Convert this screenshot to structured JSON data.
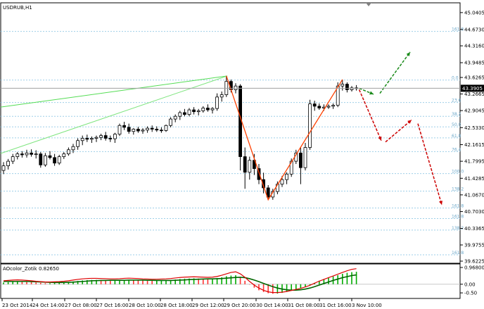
{
  "symbol_title": "USDRUB,H1",
  "indicator_title": "AOcolor_Zotik 0.82650",
  "price_badge": "43.3905",
  "colors": {
    "bull_candle": "#ffffff",
    "bear_candle": "#000000",
    "zigzag": "#ff4000",
    "green_line": "#00cc00",
    "forecast_up": "#1a8a1a",
    "forecast_down": "#cc0000",
    "ao_up": "#00aa00",
    "ao_down": "#ff3333",
    "fib": "#9ecfe8"
  },
  "chart_data": [
    {
      "type": "candlestick",
      "title": "USDRUB,H1",
      "ylim": [
        39.6225,
        45.1
      ],
      "ytick_labels": [
        "45.0405",
        "44.6730",
        "44.3160",
        "43.9485",
        "43.6265",
        "43.2665",
        "42.9045",
        "42.5330",
        "42.1615",
        "41.7995",
        "41.4285",
        "41.0670",
        "40.7030",
        "40.3365",
        "39.9755",
        "39.6225"
      ],
      "ytick_values": [
        45.0405,
        44.673,
        44.316,
        43.9485,
        43.6265,
        43.2665,
        42.9045,
        42.533,
        42.1615,
        41.7995,
        41.4285,
        41.067,
        40.703,
        40.3365,
        39.9755,
        39.6225
      ],
      "xtick_labels": [
        "23 Oct 2014",
        "24 Oct 14:00",
        "27 Oct 08:00",
        "27 Oct 16:00",
        "28 Oct 10:00",
        "28 Oct 18:00",
        "29 Oct 12:00",
        "29 Oct 20:00",
        "30 Oct 14:00",
        "31 Oct 08:00",
        "31 Oct 16:00",
        "3 Nov 10:00"
      ],
      "current_price": 43.3905,
      "fib_levels": [
        {
          "label": "161.8",
          "value": 44.63
        },
        {
          "label": "0.0",
          "value": 43.57
        },
        {
          "label": "23.6",
          "value": 43.08
        },
        {
          "label": "38.2",
          "value": 42.78
        },
        {
          "label": "50.0",
          "value": 42.55
        },
        {
          "label": "61.8",
          "value": 42.31
        },
        {
          "label": "76.4",
          "value": 42.01
        },
        {
          "label": "100.0",
          "value": 41.53
        },
        {
          "label": "138.2",
          "value": 41.15
        },
        {
          "label": "161.8",
          "value": 40.78
        },
        {
          "label": "161.8",
          "value": 40.55
        },
        {
          "label": "138.2",
          "value": 40.3
        },
        {
          "label": "161.8",
          "value": 39.76
        }
      ],
      "candles": [
        {
          "o": 41.6,
          "h": 41.78,
          "l": 41.52,
          "c": 41.7
        },
        {
          "o": 41.7,
          "h": 41.85,
          "l": 41.62,
          "c": 41.8
        },
        {
          "o": 41.8,
          "h": 41.96,
          "l": 41.74,
          "c": 41.9
        },
        {
          "o": 41.9,
          "h": 42.0,
          "l": 41.84,
          "c": 41.96
        },
        {
          "o": 41.96,
          "h": 42.02,
          "l": 41.88,
          "c": 41.94
        },
        {
          "o": 41.94,
          "h": 42.05,
          "l": 41.88,
          "c": 41.98
        },
        {
          "o": 41.98,
          "h": 42.06,
          "l": 41.9,
          "c": 41.95
        },
        {
          "o": 41.95,
          "h": 42.04,
          "l": 41.86,
          "c": 41.96
        },
        {
          "o": 41.96,
          "h": 42.0,
          "l": 41.66,
          "c": 41.72
        },
        {
          "o": 41.72,
          "h": 41.98,
          "l": 41.68,
          "c": 41.92
        },
        {
          "o": 41.92,
          "h": 42.02,
          "l": 41.84,
          "c": 41.88
        },
        {
          "o": 41.88,
          "h": 41.96,
          "l": 41.7,
          "c": 41.76
        },
        {
          "o": 41.76,
          "h": 41.94,
          "l": 41.72,
          "c": 41.9
        },
        {
          "o": 41.9,
          "h": 42.0,
          "l": 41.85,
          "c": 41.96
        },
        {
          "o": 41.96,
          "h": 42.1,
          "l": 41.92,
          "c": 42.05
        },
        {
          "o": 42.05,
          "h": 42.18,
          "l": 41.98,
          "c": 42.12
        },
        {
          "o": 42.12,
          "h": 42.3,
          "l": 42.05,
          "c": 42.25
        },
        {
          "o": 42.25,
          "h": 42.36,
          "l": 42.15,
          "c": 42.3
        },
        {
          "o": 42.3,
          "h": 42.38,
          "l": 42.22,
          "c": 42.28
        },
        {
          "o": 42.28,
          "h": 42.34,
          "l": 42.2,
          "c": 42.3
        },
        {
          "o": 42.3,
          "h": 42.36,
          "l": 42.22,
          "c": 42.32
        },
        {
          "o": 42.32,
          "h": 42.4,
          "l": 42.26,
          "c": 42.36
        },
        {
          "o": 42.36,
          "h": 42.44,
          "l": 42.25,
          "c": 42.3
        },
        {
          "o": 42.3,
          "h": 42.36,
          "l": 42.22,
          "c": 42.29
        },
        {
          "o": 42.29,
          "h": 42.42,
          "l": 42.2,
          "c": 42.39
        },
        {
          "o": 42.39,
          "h": 42.62,
          "l": 42.35,
          "c": 42.58
        },
        {
          "o": 42.58,
          "h": 42.66,
          "l": 42.48,
          "c": 42.54
        },
        {
          "o": 42.54,
          "h": 42.62,
          "l": 42.4,
          "c": 42.45
        },
        {
          "o": 42.45,
          "h": 42.52,
          "l": 42.38,
          "c": 42.5
        },
        {
          "o": 42.5,
          "h": 42.55,
          "l": 42.42,
          "c": 42.46
        },
        {
          "o": 42.46,
          "h": 42.52,
          "l": 42.4,
          "c": 42.48
        },
        {
          "o": 42.48,
          "h": 42.56,
          "l": 42.42,
          "c": 42.52
        },
        {
          "o": 42.52,
          "h": 42.58,
          "l": 42.44,
          "c": 42.5
        },
        {
          "o": 42.5,
          "h": 42.56,
          "l": 42.44,
          "c": 42.48
        },
        {
          "o": 42.48,
          "h": 42.54,
          "l": 42.42,
          "c": 42.47
        },
        {
          "o": 42.47,
          "h": 42.6,
          "l": 42.44,
          "c": 42.58
        },
        {
          "o": 42.58,
          "h": 42.76,
          "l": 42.54,
          "c": 42.72
        },
        {
          "o": 42.72,
          "h": 42.82,
          "l": 42.65,
          "c": 42.78
        },
        {
          "o": 42.78,
          "h": 42.9,
          "l": 42.7,
          "c": 42.86
        },
        {
          "o": 42.86,
          "h": 42.94,
          "l": 42.78,
          "c": 42.82
        },
        {
          "o": 42.82,
          "h": 42.96,
          "l": 42.78,
          "c": 42.92
        },
        {
          "o": 42.92,
          "h": 42.98,
          "l": 42.82,
          "c": 42.88
        },
        {
          "o": 42.88,
          "h": 42.94,
          "l": 42.8,
          "c": 42.9
        },
        {
          "o": 42.9,
          "h": 43.0,
          "l": 42.86,
          "c": 42.96
        },
        {
          "o": 42.96,
          "h": 43.04,
          "l": 42.88,
          "c": 42.92
        },
        {
          "o": 42.92,
          "h": 42.98,
          "l": 42.84,
          "c": 42.95
        },
        {
          "o": 42.95,
          "h": 43.28,
          "l": 42.9,
          "c": 43.2
        },
        {
          "o": 43.2,
          "h": 43.32,
          "l": 43.1,
          "c": 43.25
        },
        {
          "o": 43.25,
          "h": 43.66,
          "l": 43.2,
          "c": 43.54
        },
        {
          "o": 43.54,
          "h": 43.58,
          "l": 43.3,
          "c": 43.36
        },
        {
          "o": 43.36,
          "h": 43.5,
          "l": 43.28,
          "c": 43.44
        },
        {
          "o": 43.44,
          "h": 43.48,
          "l": 41.6,
          "c": 41.9
        },
        {
          "o": 41.9,
          "h": 42.1,
          "l": 41.2,
          "c": 41.56
        },
        {
          "o": 41.56,
          "h": 41.9,
          "l": 41.4,
          "c": 41.82
        },
        {
          "o": 41.82,
          "h": 41.96,
          "l": 41.5,
          "c": 41.64
        },
        {
          "o": 41.64,
          "h": 41.74,
          "l": 41.3,
          "c": 41.4
        },
        {
          "o": 41.4,
          "h": 41.55,
          "l": 41.1,
          "c": 41.22
        },
        {
          "o": 41.22,
          "h": 41.28,
          "l": 40.98,
          "c": 41.02
        },
        {
          "o": 41.02,
          "h": 41.2,
          "l": 40.96,
          "c": 41.14
        },
        {
          "o": 41.14,
          "h": 41.36,
          "l": 41.08,
          "c": 41.3
        },
        {
          "o": 41.3,
          "h": 41.48,
          "l": 41.24,
          "c": 41.4
        },
        {
          "o": 41.4,
          "h": 41.56,
          "l": 41.3,
          "c": 41.52
        },
        {
          "o": 41.52,
          "h": 41.86,
          "l": 41.46,
          "c": 41.8
        },
        {
          "o": 41.8,
          "h": 42.05,
          "l": 41.74,
          "c": 41.98
        },
        {
          "o": 41.98,
          "h": 42.1,
          "l": 41.3,
          "c": 41.66
        },
        {
          "o": 41.66,
          "h": 42.2,
          "l": 41.6,
          "c": 42.1
        },
        {
          "o": 42.1,
          "h": 43.14,
          "l": 42.05,
          "c": 43.05
        },
        {
          "o": 43.05,
          "h": 43.12,
          "l": 42.9,
          "c": 43.0
        },
        {
          "o": 43.0,
          "h": 43.06,
          "l": 42.92,
          "c": 42.96
        },
        {
          "o": 42.96,
          "h": 43.04,
          "l": 42.9,
          "c": 42.98
        },
        {
          "o": 42.98,
          "h": 43.04,
          "l": 42.94,
          "c": 43.0
        },
        {
          "o": 43.0,
          "h": 43.06,
          "l": 42.94,
          "c": 43.02
        },
        {
          "o": 43.02,
          "h": 43.52,
          "l": 42.98,
          "c": 43.44
        },
        {
          "o": 43.44,
          "h": 43.58,
          "l": 43.34,
          "c": 43.48
        },
        {
          "o": 43.48,
          "h": 43.52,
          "l": 43.3,
          "c": 43.36
        },
        {
          "o": 43.36,
          "h": 43.44,
          "l": 43.32,
          "c": 43.4
        },
        {
          "o": 43.4,
          "h": 43.46,
          "l": 43.34,
          "c": 43.39
        }
      ]
    },
    {
      "type": "bar",
      "title": "AOcolor_Zotik 0.82650",
      "ylim": [
        -0.7,
        1.05
      ],
      "ytick_labels": [
        "0.968004",
        "0.00",
        "-0.50"
      ],
      "ytick_values": [
        0.968004,
        0.0,
        -0.5
      ],
      "values": [
        0.1,
        0.12,
        0.14,
        0.15,
        0.14,
        0.13,
        0.12,
        0.1,
        0.08,
        0.06,
        0.06,
        0.07,
        0.08,
        0.1,
        0.13,
        0.16,
        0.19,
        0.22,
        0.24,
        0.25,
        0.25,
        0.24,
        0.23,
        0.22,
        0.22,
        0.23,
        0.25,
        0.26,
        0.25,
        0.24,
        0.22,
        0.21,
        0.2,
        0.2,
        0.21,
        0.22,
        0.24,
        0.27,
        0.3,
        0.32,
        0.33,
        0.34,
        0.33,
        0.32,
        0.31,
        0.32,
        0.36,
        0.4,
        0.46,
        0.5,
        0.52,
        0.4,
        0.2,
        -0.02,
        -0.2,
        -0.35,
        -0.45,
        -0.52,
        -0.55,
        -0.54,
        -0.5,
        -0.44,
        -0.38,
        -0.3,
        -0.24,
        -0.16,
        -0.06,
        0.08,
        0.2,
        0.3,
        0.38,
        0.45,
        0.52,
        0.6,
        0.66,
        0.7,
        0.72
      ],
      "signal": [
        0.16,
        0.16,
        0.16,
        0.16,
        0.16,
        0.16,
        0.15,
        0.14,
        0.13,
        0.12,
        0.11,
        0.1,
        0.1,
        0.1,
        0.11,
        0.12,
        0.14,
        0.16,
        0.18,
        0.2,
        0.21,
        0.22,
        0.22,
        0.23,
        0.23,
        0.23,
        0.23,
        0.24,
        0.24,
        0.24,
        0.24,
        0.23,
        0.23,
        0.22,
        0.22,
        0.22,
        0.22,
        0.23,
        0.24,
        0.25,
        0.27,
        0.28,
        0.29,
        0.3,
        0.31,
        0.31,
        0.32,
        0.33,
        0.35,
        0.37,
        0.39,
        0.4,
        0.38,
        0.32,
        0.24,
        0.15,
        0.05,
        -0.05,
        -0.14,
        -0.22,
        -0.28,
        -0.32,
        -0.34,
        -0.34,
        -0.32,
        -0.28,
        -0.22,
        -0.14,
        -0.05,
        0.04,
        0.13,
        0.22,
        0.3,
        0.38,
        0.44,
        0.5,
        0.54
      ],
      "line": [
        0.2,
        0.22,
        0.24,
        0.25,
        0.24,
        0.22,
        0.2,
        0.17,
        0.15,
        0.13,
        0.13,
        0.14,
        0.15,
        0.17,
        0.2,
        0.24,
        0.28,
        0.31,
        0.33,
        0.34,
        0.34,
        0.33,
        0.32,
        0.31,
        0.31,
        0.32,
        0.34,
        0.35,
        0.34,
        0.33,
        0.31,
        0.3,
        0.29,
        0.29,
        0.3,
        0.31,
        0.33,
        0.36,
        0.39,
        0.41,
        0.42,
        0.43,
        0.42,
        0.41,
        0.4,
        0.41,
        0.45,
        0.52,
        0.6,
        0.68,
        0.72,
        0.6,
        0.4,
        0.16,
        -0.05,
        -0.22,
        -0.35,
        -0.44,
        -0.48,
        -0.48,
        -0.46,
        -0.42,
        -0.36,
        -0.3,
        -0.24,
        -0.16,
        -0.06,
        0.06,
        0.18,
        0.28,
        0.38,
        0.48,
        0.58,
        0.68,
        0.78,
        0.86,
        0.9
      ]
    }
  ]
}
